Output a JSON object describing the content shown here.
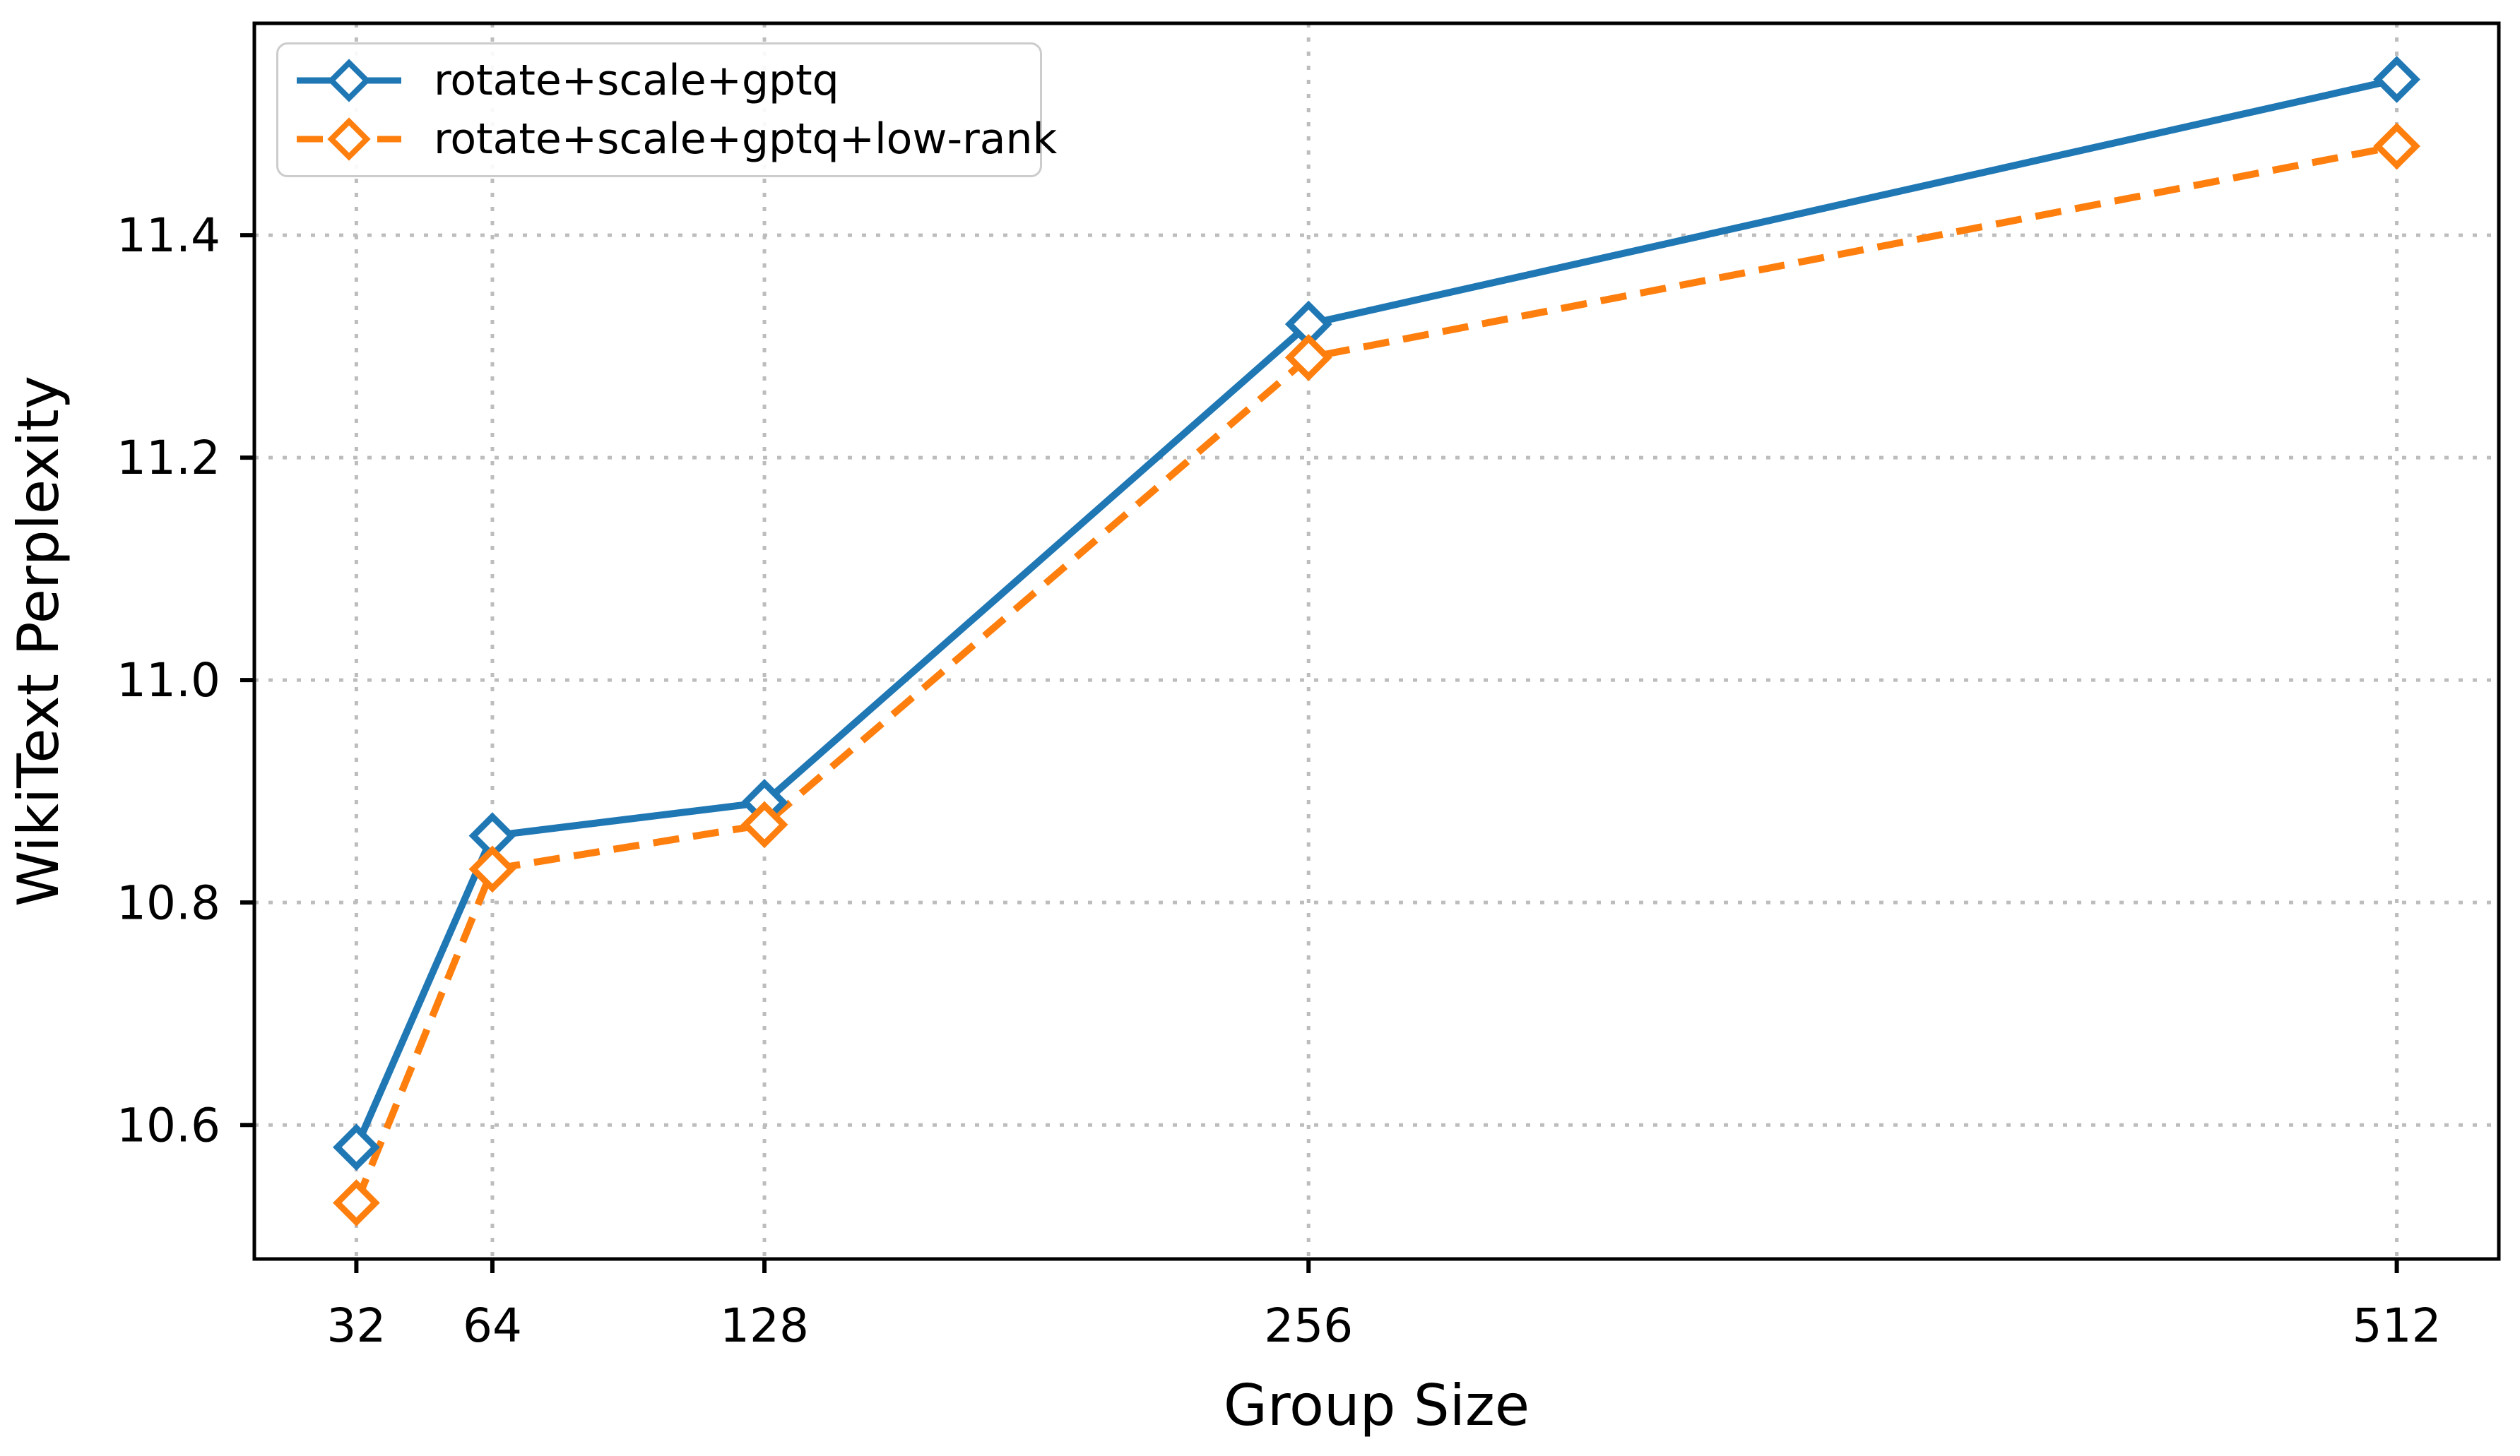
{
  "chart_data": {
    "type": "line",
    "title": "",
    "xlabel": "Group Size",
    "ylabel": "WikiText Perplexity",
    "x": [
      32,
      64,
      128,
      256,
      512
    ],
    "x_tick_labels": [
      "32",
      "64",
      "128",
      "256",
      "512"
    ],
    "y_ticks": [
      10.6,
      10.8,
      11.0,
      11.2,
      11.4
    ],
    "y_tick_labels": [
      "10.6",
      "10.8",
      "11.0",
      "11.2",
      "11.4"
    ],
    "xlim": [
      8,
      536
    ],
    "ylim": [
      10.4795,
      11.5905
    ],
    "x_scale": "linear",
    "grid": "dotted",
    "legend_position": "upper-left",
    "series": [
      {
        "name": "rotate+scale+gptq",
        "color": "#1f77b4",
        "line_style": "solid",
        "marker": "diamond",
        "values": [
          10.58,
          10.86,
          10.89,
          11.32,
          11.54
        ]
      },
      {
        "name": "rotate+scale+gptq+low-rank",
        "color": "#ff7f0e",
        "line_style": "dashed",
        "marker": "diamond",
        "values": [
          10.53,
          10.83,
          10.87,
          11.29,
          11.48
        ]
      }
    ],
    "grid_color": "#bdbdbd",
    "axis_color": "#000000",
    "background": "#ffffff"
  }
}
